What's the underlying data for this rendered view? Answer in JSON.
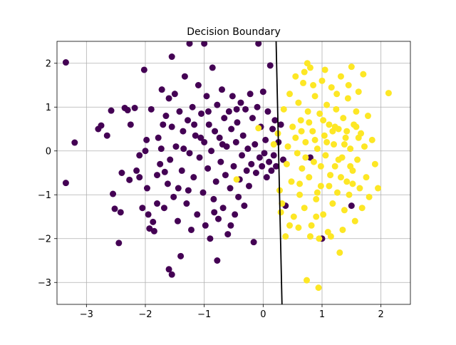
{
  "chart_data": {
    "type": "scatter",
    "title": "Decision Boundary",
    "xlabel": "",
    "ylabel": "",
    "xlim": [
      -3.5,
      2.5
    ],
    "ylim": [
      -3.5,
      2.5
    ],
    "xticks": [
      -3,
      -2,
      -1,
      0,
      1,
      2
    ],
    "yticks": [
      -3,
      -2,
      -1,
      0,
      1,
      2
    ],
    "xtick_labels": [
      "−3",
      "−2",
      "−1",
      "0",
      "1",
      "2"
    ],
    "ytick_labels": [
      "−3",
      "−2",
      "−1",
      "0",
      "1",
      "2"
    ],
    "grid": true,
    "legend": "none",
    "colors": {
      "class_0": "#440154",
      "class_1": "#fde725",
      "boundary": "#000000",
      "grid": "#b0b0b0"
    },
    "boundary_line": {
      "x": [
        0.22,
        0.32
      ],
      "y": [
        2.5,
        -3.5
      ]
    },
    "series": [
      {
        "class": 0,
        "color": "#440154",
        "points": [
          [
            -3.35,
            2.02
          ],
          [
            -3.35,
            -0.73
          ],
          [
            -3.2,
            0.19
          ],
          [
            -2.8,
            0.5
          ],
          [
            -2.75,
            0.58
          ],
          [
            -2.55,
            -0.98
          ],
          [
            -2.52,
            -1.32
          ],
          [
            -2.45,
            -2.1
          ],
          [
            -2.42,
            -1.4
          ],
          [
            -2.4,
            -0.5
          ],
          [
            -2.35,
            0.98
          ],
          [
            -2.3,
            0.93
          ],
          [
            -2.27,
            -0.66
          ],
          [
            -2.18,
            0.98
          ],
          [
            -2.15,
            -0.45
          ],
          [
            -2.1,
            -0.6
          ],
          [
            -2.05,
            -1.3
          ],
          [
            -2.02,
            1.85
          ],
          [
            -2.0,
            0.0
          ],
          [
            -1.98,
            0.25
          ],
          [
            -1.95,
            -1.45
          ],
          [
            -1.93,
            -1.77
          ],
          [
            -1.9,
            0.95
          ],
          [
            -1.85,
            -1.83
          ],
          [
            -1.8,
            -0.55
          ],
          [
            -1.78,
            0.3
          ],
          [
            -1.75,
            -0.3
          ],
          [
            -1.72,
            1.4
          ],
          [
            -1.7,
            0.6
          ],
          [
            -1.68,
            -1.3
          ],
          [
            -1.65,
            0.8
          ],
          [
            -1.62,
            -0.75
          ],
          [
            -1.6,
            1.2
          ],
          [
            -1.58,
            -0.2
          ],
          [
            -1.55,
            0.55
          ],
          [
            -1.52,
            -1.05
          ],
          [
            -1.5,
            1.3
          ],
          [
            -1.48,
            0.1
          ],
          [
            -1.45,
            -1.6
          ],
          [
            -1.42,
            0.9
          ],
          [
            -1.4,
            -2.4
          ],
          [
            -1.38,
            -0.45
          ],
          [
            -1.36,
            0.45
          ],
          [
            -1.33,
            1.7
          ],
          [
            -1.3,
            -1.2
          ],
          [
            -1.28,
            0.7
          ],
          [
            -1.25,
            -0.05
          ],
          [
            -1.22,
            -1.8
          ],
          [
            -1.2,
            1.0
          ],
          [
            -1.18,
            -0.6
          ],
          [
            -1.15,
            0.35
          ],
          [
            -1.12,
            -1.45
          ],
          [
            -1.1,
            1.5
          ],
          [
            -1.08,
            -0.15
          ],
          [
            -1.05,
            0.85
          ],
          [
            -1.02,
            -0.95
          ],
          [
            -1.0,
            0.2
          ],
          [
            -0.98,
            -1.7
          ],
          [
            -0.96,
            1.25
          ],
          [
            -0.94,
            -0.4
          ],
          [
            -0.92,
            0.6
          ],
          [
            -0.9,
            -2.0
          ],
          [
            -0.88,
            0.0
          ],
          [
            -0.86,
            1.9
          ],
          [
            -0.84,
            -1.1
          ],
          [
            -0.82,
            0.45
          ],
          [
            -0.8,
            -0.7
          ],
          [
            -0.78,
            1.05
          ],
          [
            -0.76,
            -1.55
          ],
          [
            -0.74,
            0.3
          ],
          [
            -0.72,
            -0.25
          ],
          [
            -0.7,
            1.4
          ],
          [
            -0.68,
            -1.3
          ],
          [
            -0.66,
            0.75
          ],
          [
            -0.64,
            -0.55
          ],
          [
            -0.62,
            0.1
          ],
          [
            -0.6,
            -1.9
          ],
          [
            -0.58,
            0.9
          ],
          [
            -0.56,
            -0.85
          ],
          [
            -0.54,
            0.5
          ],
          [
            -0.52,
            1.25
          ],
          [
            -0.5,
            -0.35
          ],
          [
            -0.48,
            -1.45
          ],
          [
            -0.46,
            0.2
          ],
          [
            -0.44,
            0.65
          ],
          [
            -0.42,
            -1.05
          ],
          [
            -0.4,
            -0.65
          ],
          [
            -0.38,
            1.1
          ],
          [
            -0.36,
            -0.1
          ],
          [
            -0.34,
            0.35
          ],
          [
            -0.32,
            -1.25
          ],
          [
            -0.3,
            0.95
          ],
          [
            -0.28,
            -0.45
          ],
          [
            -0.26,
            0.05
          ],
          [
            -0.24,
            -0.8
          ],
          [
            -0.22,
            1.3
          ],
          [
            -0.2,
            -0.3
          ],
          [
            -0.18,
            0.75
          ],
          [
            -0.16,
            -2.08
          ],
          [
            -0.14,
            0.15
          ],
          [
            -0.12,
            -0.5
          ],
          [
            -0.1,
            1.0
          ],
          [
            -0.08,
            2.45
          ],
          [
            -0.06,
            -0.15
          ],
          [
            -0.04,
            0.55
          ],
          [
            -0.02,
            -0.35
          ],
          [
            0.0,
            1.35
          ],
          [
            0.02,
            -0.05
          ],
          [
            0.04,
            0.25
          ],
          [
            0.06,
            -0.6
          ],
          [
            0.08,
            0.9
          ],
          [
            0.1,
            -0.25
          ],
          [
            0.12,
            1.95
          ],
          [
            0.14,
            -0.45
          ],
          [
            0.16,
            0.5
          ],
          [
            0.18,
            -0.1
          ],
          [
            0.2,
            0.7
          ],
          [
            0.22,
            -0.35
          ],
          [
            0.26,
            0.2
          ],
          [
            0.3,
            0.6
          ],
          [
            0.34,
            -0.2
          ],
          [
            0.38,
            -1.25
          ],
          [
            0.8,
            -0.15
          ],
          [
            1.0,
            -2.0
          ],
          [
            1.5,
            -1.25
          ],
          [
            -1.8,
            -1.2
          ],
          [
            -2.1,
            -0.1
          ],
          [
            -1.6,
            -2.7
          ],
          [
            -1.55,
            -2.82
          ],
          [
            -1.55,
            2.15
          ],
          [
            -1.25,
            2.45
          ],
          [
            -1.0,
            2.45
          ],
          [
            -0.78,
            -2.5
          ],
          [
            -2.58,
            0.92
          ],
          [
            -2.65,
            0.35
          ],
          [
            -2.25,
            0.6
          ],
          [
            -1.97,
            -0.85
          ],
          [
            -1.87,
            -1.62
          ],
          [
            -1.73,
            0.05
          ],
          [
            -1.67,
            -0.48
          ],
          [
            -1.44,
            -0.85
          ],
          [
            -1.35,
            0.05
          ],
          [
            -1.27,
            -0.9
          ],
          [
            -1.17,
            0.6
          ],
          [
            -1.06,
            0.3
          ],
          [
            -0.93,
            0.9
          ],
          [
            -0.83,
            -1.4
          ],
          [
            -0.69,
            0.15
          ],
          [
            -0.55,
            -1.7
          ],
          [
            -0.45,
            0.95
          ]
        ]
      },
      {
        "class": 1,
        "color": "#fde725",
        "points": [
          [
            -0.45,
            -0.65
          ],
          [
            -0.08,
            0.52
          ],
          [
            0.18,
            0.15
          ],
          [
            0.25,
            0.4
          ],
          [
            0.28,
            -0.9
          ],
          [
            0.32,
            -1.2
          ],
          [
            0.35,
            0.95
          ],
          [
            0.38,
            -1.95
          ],
          [
            0.4,
            -0.3
          ],
          [
            0.42,
            0.1
          ],
          [
            0.45,
            1.3
          ],
          [
            0.48,
            -0.7
          ],
          [
            0.5,
            0.55
          ],
          [
            0.52,
            -1.5
          ],
          [
            0.55,
            0.3
          ],
          [
            0.58,
            -0.05
          ],
          [
            0.6,
            1.1
          ],
          [
            0.62,
            -1.0
          ],
          [
            0.64,
            0.7
          ],
          [
            0.66,
            -0.4
          ],
          [
            0.68,
            1.55
          ],
          [
            0.7,
            -1.3
          ],
          [
            0.72,
            0.2
          ],
          [
            0.74,
            -2.95
          ],
          [
            0.76,
            0.9
          ],
          [
            0.78,
            -0.6
          ],
          [
            0.8,
            1.9
          ],
          [
            0.82,
            -1.7
          ],
          [
            0.84,
            0.45
          ],
          [
            0.86,
            -0.25
          ],
          [
            0.88,
            1.25
          ],
          [
            0.9,
            -1.1
          ],
          [
            0.92,
            0.05
          ],
          [
            0.94,
            -3.12
          ],
          [
            0.96,
            0.85
          ],
          [
            0.98,
            -0.8
          ],
          [
            1.0,
            1.6
          ],
          [
            1.02,
            -1.45
          ],
          [
            1.04,
            0.35
          ],
          [
            1.06,
            -0.1
          ],
          [
            1.08,
            1.05
          ],
          [
            1.1,
            -1.85
          ],
          [
            1.12,
            0.6
          ],
          [
            1.14,
            -0.55
          ],
          [
            1.16,
            1.45
          ],
          [
            1.18,
            -1.2
          ],
          [
            1.2,
            0.15
          ],
          [
            1.22,
            -0.35
          ],
          [
            1.24,
            0.95
          ],
          [
            1.26,
            -0.95
          ],
          [
            1.28,
            0.5
          ],
          [
            1.3,
            -2.32
          ],
          [
            1.32,
            1.7
          ],
          [
            1.34,
            -0.15
          ],
          [
            1.36,
            0.75
          ],
          [
            1.38,
            -1.35
          ],
          [
            1.4,
            0.3
          ],
          [
            1.42,
            -0.7
          ],
          [
            1.44,
            1.2
          ],
          [
            1.46,
            -1.0
          ],
          [
            1.48,
            0.05
          ],
          [
            1.5,
            1.92
          ],
          [
            1.52,
            -0.45
          ],
          [
            1.54,
            0.6
          ],
          [
            1.56,
            -1.6
          ],
          [
            1.58,
            0.9
          ],
          [
            1.6,
            -0.2
          ],
          [
            1.62,
            1.35
          ],
          [
            1.64,
            -0.85
          ],
          [
            1.66,
            0.4
          ],
          [
            1.68,
            -1.3
          ],
          [
            1.7,
            1.75
          ],
          [
            1.72,
            0.1
          ],
          [
            1.75,
            -0.6
          ],
          [
            1.78,
            0.8
          ],
          [
            1.8,
            -1.05
          ],
          [
            1.85,
            0.25
          ],
          [
            1.9,
            -0.3
          ],
          [
            1.95,
            -0.85
          ],
          [
            2.13,
            1.32
          ],
          [
            0.3,
            -1.4
          ],
          [
            0.45,
            -1.7
          ],
          [
            0.55,
            1.7
          ],
          [
            0.6,
            -1.75
          ],
          [
            0.7,
            1.8
          ],
          [
            0.75,
            2.0
          ],
          [
            0.8,
            -1.95
          ],
          [
            0.85,
            1.5
          ],
          [
            0.9,
            -1.5
          ],
          [
            0.95,
            -2.0
          ],
          [
            1.05,
            1.85
          ],
          [
            1.15,
            -1.95
          ],
          [
            1.25,
            1.3
          ],
          [
            1.35,
            -1.8
          ],
          [
            1.45,
            1.5
          ],
          [
            0.65,
            0.45
          ],
          [
            0.72,
            -0.15
          ],
          [
            0.88,
            0.25
          ],
          [
            0.98,
            -0.35
          ],
          [
            1.08,
            0.2
          ],
          [
            1.18,
            0.45
          ],
          [
            1.28,
            -0.2
          ],
          [
            1.38,
            0.15
          ],
          [
            1.48,
            -0.35
          ],
          [
            1.58,
            0.55
          ],
          [
            0.62,
            -0.75
          ],
          [
            0.78,
            0.65
          ],
          [
            0.92,
            -0.95
          ],
          [
            1.02,
            0.7
          ],
          [
            1.12,
            -0.8
          ],
          [
            1.22,
            0.55
          ],
          [
            1.32,
            -0.6
          ],
          [
            1.42,
            0.45
          ],
          [
            1.52,
            -0.75
          ],
          [
            1.62,
            0.3
          ]
        ]
      }
    ]
  }
}
